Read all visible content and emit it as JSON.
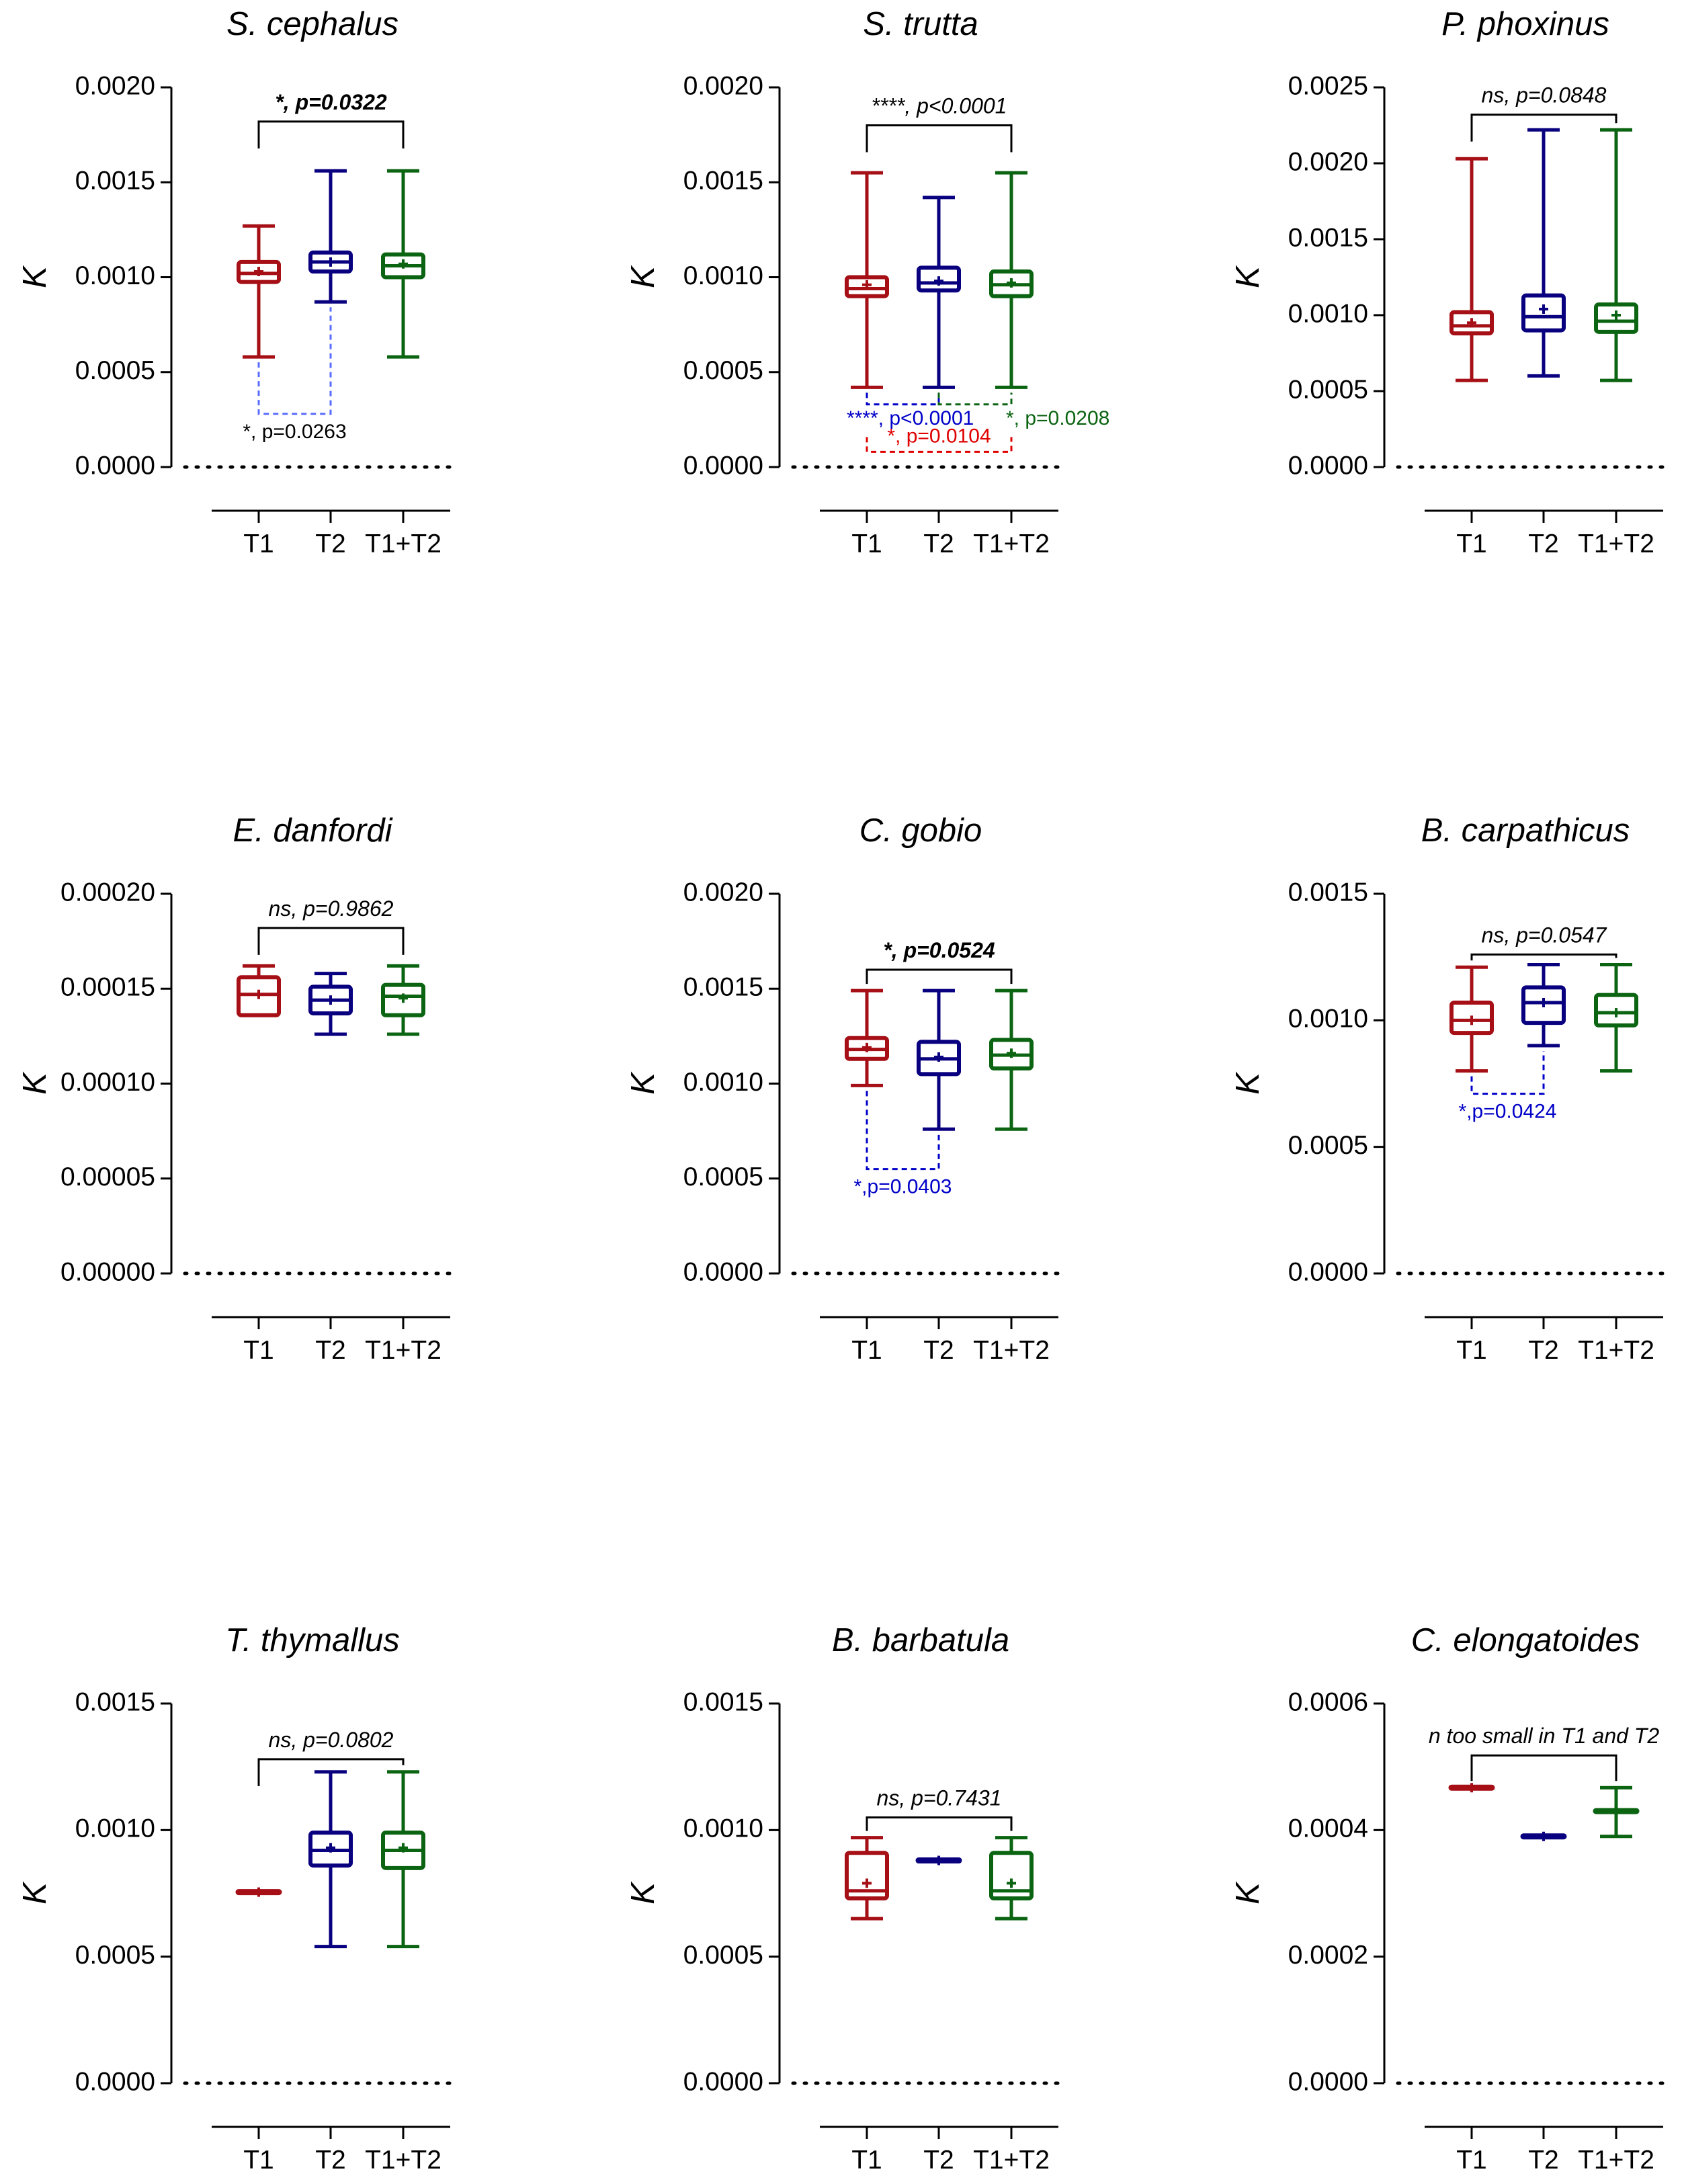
{
  "figure": {
    "colors": {
      "T1": "#a50f15",
      "T2": "#08007f",
      "T1+T2": "#0b6411",
      "axis": "#000000"
    }
  },
  "chart_data": [
    {
      "type": "box",
      "title": "S. cephalus",
      "ylabel": "K",
      "categories": [
        "T1",
        "T2",
        "T1+T2"
      ],
      "ylim": [
        0,
        0.002
      ],
      "yticks": [
        "0.0000",
        "0.0005",
        "0.0010",
        "0.0015",
        "0.0020"
      ],
      "tickvals": [
        0,
        0.0005,
        0.001,
        0.0015,
        0.002
      ],
      "boxes": [
        {
          "min": 0.00058,
          "q1": 0.000975,
          "median": 0.00102,
          "q3": 0.00108,
          "max": 0.00127,
          "mean": 0.00103
        },
        {
          "min": 0.00087,
          "q1": 0.00103,
          "median": 0.00108,
          "q3": 0.00113,
          "max": 0.00156,
          "mean": 0.00108
        },
        {
          "min": 0.00058,
          "q1": 0.001,
          "median": 0.00106,
          "q3": 0.00112,
          "max": 0.00156,
          "mean": 0.00107
        }
      ],
      "main_test": {
        "text": "*, p=0.0322",
        "from": 0,
        "to": 2,
        "y": 0.00182,
        "bold": true
      },
      "pair_tests": [
        {
          "text": "*, p=0.0263",
          "from": 0,
          "to": 1,
          "y": 0.00028,
          "color": "#5a6cff",
          "text_color": "#000000",
          "label_pos": "below"
        }
      ]
    },
    {
      "type": "box",
      "title": "S. trutta",
      "ylabel": "K",
      "categories": [
        "T1",
        "T2",
        "T1+T2"
      ],
      "ylim": [
        0,
        0.002
      ],
      "yticks": [
        "0.0000",
        "0.0005",
        "0.0010",
        "0.0015",
        "0.0020"
      ],
      "tickvals": [
        0,
        0.0005,
        0.001,
        0.0015,
        0.002
      ],
      "boxes": [
        {
          "min": 0.00042,
          "q1": 0.0009,
          "median": 0.00094,
          "q3": 0.001,
          "max": 0.00155,
          "mean": 0.00096
        },
        {
          "min": 0.00042,
          "q1": 0.00093,
          "median": 0.00097,
          "q3": 0.00105,
          "max": 0.00142,
          "mean": 0.00098
        },
        {
          "min": 0.00042,
          "q1": 0.0009,
          "median": 0.00096,
          "q3": 0.00103,
          "max": 0.00155,
          "mean": 0.00097
        }
      ],
      "main_test": {
        "text": "****, p<0.0001",
        "from": 0,
        "to": 2,
        "y": 0.0018,
        "bold": false
      },
      "pair_tests": [
        {
          "text": "****, p<0.0001",
          "from": 0,
          "to": 1,
          "y": 0.00033,
          "color": "#0000c8",
          "text_color": "#0000c8",
          "label_pos": "below-left",
          "small": true
        },
        {
          "text": "*, p=0.0208",
          "from": 1,
          "to": 2,
          "y": 0.00033,
          "color": "#0b6411",
          "text_color": "#0b6411",
          "label_pos": "below-right",
          "small": true
        },
        {
          "text": "*, p=0.0104",
          "from": 0,
          "to": 2,
          "y": 8e-05,
          "color": "#e00000",
          "text_color": "#e00000",
          "label_pos": "above",
          "small": true
        }
      ]
    },
    {
      "type": "box",
      "title": "P. phoxinus",
      "ylabel": "K",
      "categories": [
        "T1",
        "T2",
        "T1+T2"
      ],
      "ylim": [
        0,
        0.0025
      ],
      "yticks": [
        "0.0000",
        "0.0005",
        "0.0010",
        "0.0015",
        "0.0020",
        "0.0025"
      ],
      "tickvals": [
        0,
        0.0005,
        0.001,
        0.0015,
        0.002,
        0.0025
      ],
      "boxes": [
        {
          "min": 0.00057,
          "q1": 0.00088,
          "median": 0.00093,
          "q3": 0.00102,
          "max": 0.00203,
          "mean": 0.00095
        },
        {
          "min": 0.0006,
          "q1": 0.0009,
          "median": 0.00099,
          "q3": 0.00113,
          "max": 0.00222,
          "mean": 0.00104
        },
        {
          "min": 0.00057,
          "q1": 0.00089,
          "median": 0.00096,
          "q3": 0.00107,
          "max": 0.00222,
          "mean": 0.001
        }
      ],
      "main_test": {
        "text": "ns, p=0.0848",
        "from": 0,
        "to": 2,
        "y": 0.00232,
        "bold": false
      },
      "pair_tests": []
    },
    {
      "type": "box",
      "title": "E. danfordi",
      "ylabel": "K",
      "categories": [
        "T1",
        "T2",
        "T1+T2"
      ],
      "ylim": [
        0,
        0.0002
      ],
      "yticks": [
        "0.00000",
        "0.00005",
        "0.00010",
        "0.00015",
        "0.00020"
      ],
      "tickvals": [
        0,
        5e-05,
        0.0001,
        0.00015,
        0.0002
      ],
      "boxes": [
        {
          "min": 0.000136,
          "q1": 0.000136,
          "median": 0.000147,
          "q3": 0.000156,
          "max": 0.000162,
          "mean": 0.000147
        },
        {
          "min": 0.000126,
          "q1": 0.000137,
          "median": 0.000144,
          "q3": 0.000151,
          "max": 0.000158,
          "mean": 0.000144
        },
        {
          "min": 0.000126,
          "q1": 0.000136,
          "median": 0.000146,
          "q3": 0.000152,
          "max": 0.000162,
          "mean": 0.000145
        }
      ],
      "main_test": {
        "text": "ns, p=0.9862",
        "from": 0,
        "to": 2,
        "y": 0.000182,
        "bold": false
      },
      "pair_tests": []
    },
    {
      "type": "box",
      "title": "C. gobio",
      "ylabel": "K",
      "categories": [
        "T1",
        "T2",
        "T1+T2"
      ],
      "ylim": [
        0,
        0.002
      ],
      "yticks": [
        "0.0000",
        "0.0005",
        "0.0010",
        "0.0015",
        "0.0020"
      ],
      "tickvals": [
        0,
        0.0005,
        0.001,
        0.0015,
        0.002
      ],
      "boxes": [
        {
          "min": 0.00099,
          "q1": 0.00113,
          "median": 0.00118,
          "q3": 0.00124,
          "max": 0.00149,
          "mean": 0.00119
        },
        {
          "min": 0.00076,
          "q1": 0.00105,
          "median": 0.00113,
          "q3": 0.00122,
          "max": 0.00149,
          "mean": 0.00114
        },
        {
          "min": 0.00076,
          "q1": 0.00108,
          "median": 0.00115,
          "q3": 0.00123,
          "max": 0.00149,
          "mean": 0.00116
        }
      ],
      "main_test": {
        "text": "*, p=0.0524",
        "from": 0,
        "to": 2,
        "y": 0.0016,
        "bold": true
      },
      "pair_tests": [
        {
          "text": "*,p=0.0403",
          "from": 0,
          "to": 1,
          "y": 0.00055,
          "color": "#0000c8",
          "text_color": "#0000c8",
          "label_pos": "below"
        }
      ]
    },
    {
      "type": "box",
      "title": "B. carpathicus",
      "ylabel": "K",
      "categories": [
        "T1",
        "T2",
        "T1+T2"
      ],
      "ylim": [
        0,
        0.0015
      ],
      "yticks": [
        "0.0000",
        "0.0005",
        "0.0010",
        "0.0015"
      ],
      "tickvals": [
        0,
        0.0005,
        0.001,
        0.0015
      ],
      "boxes": [
        {
          "min": 0.0008,
          "q1": 0.00095,
          "median": 0.001,
          "q3": 0.00107,
          "max": 0.00121,
          "mean": 0.001
        },
        {
          "min": 0.0009,
          "q1": 0.00099,
          "median": 0.00107,
          "q3": 0.00113,
          "max": 0.00122,
          "mean": 0.00107
        },
        {
          "min": 0.0008,
          "q1": 0.00098,
          "median": 0.00103,
          "q3": 0.0011,
          "max": 0.00122,
          "mean": 0.00103
        }
      ],
      "main_test": {
        "text": "ns, p=0.0547",
        "from": 0,
        "to": 2,
        "y": 0.00126,
        "bold": false
      },
      "pair_tests": [
        {
          "text": "*,p=0.0424",
          "from": 0,
          "to": 1,
          "y": 0.00071,
          "color": "#0000c8",
          "text_color": "#0000c8",
          "label_pos": "below"
        }
      ]
    },
    {
      "type": "box",
      "title": "T. thymallus",
      "ylabel": "K",
      "categories": [
        "T1",
        "T2",
        "T1+T2"
      ],
      "ylim": [
        0,
        0.0015
      ],
      "yticks": [
        "0.0000",
        "0.0005",
        "0.0010",
        "0.0015"
      ],
      "tickvals": [
        0,
        0.0005,
        0.001,
        0.0015
      ],
      "boxes": [
        {
          "min": 0.000755,
          "q1": 0.000755,
          "median": 0.000755,
          "q3": 0.000755,
          "max": 0.000755,
          "mean": 0.000755
        },
        {
          "min": 0.00054,
          "q1": 0.00086,
          "median": 0.00092,
          "q3": 0.00099,
          "max": 0.00123,
          "mean": 0.00093
        },
        {
          "min": 0.00054,
          "q1": 0.00085,
          "median": 0.00092,
          "q3": 0.00099,
          "max": 0.00123,
          "mean": 0.00093
        }
      ],
      "main_test": {
        "text": "ns, p=0.0802",
        "from": 0,
        "to": 2,
        "y": 0.00128,
        "bold": false
      },
      "pair_tests": []
    },
    {
      "type": "box",
      "title": "B. barbatula",
      "ylabel": "K",
      "categories": [
        "T1",
        "T2",
        "T1+T2"
      ],
      "ylim": [
        0,
        0.0015
      ],
      "yticks": [
        "0.0000",
        "0.0005",
        "0.0010",
        "0.0015"
      ],
      "tickvals": [
        0,
        0.0005,
        0.001,
        0.0015
      ],
      "boxes": [
        {
          "min": 0.00065,
          "q1": 0.00073,
          "median": 0.00076,
          "q3": 0.00091,
          "max": 0.00097,
          "mean": 0.00079
        },
        {
          "min": 0.00088,
          "q1": 0.00088,
          "median": 0.00088,
          "q3": 0.00088,
          "max": 0.00088,
          "mean": 0.00088
        },
        {
          "min": 0.00065,
          "q1": 0.00073,
          "median": 0.00076,
          "q3": 0.00091,
          "max": 0.00097,
          "mean": 0.00079
        }
      ],
      "main_test": {
        "text": "ns, p=0.7431",
        "from": 0,
        "to": 2,
        "y": 0.00105,
        "bold": false
      },
      "pair_tests": []
    },
    {
      "type": "box",
      "title": "C. elongatoides",
      "ylabel": "K",
      "categories": [
        "T1",
        "T2",
        "T1+T2"
      ],
      "ylim": [
        0,
        0.0006
      ],
      "yticks": [
        "0.0000",
        "0.0002",
        "0.0004",
        "0.0006"
      ],
      "tickvals": [
        0,
        0.0002,
        0.0004,
        0.0006
      ],
      "boxes": [
        {
          "min": 0.000467,
          "q1": 0.000467,
          "median": 0.000467,
          "q3": 0.000467,
          "max": 0.000467,
          "mean": 0.000467
        },
        {
          "min": 0.00039,
          "q1": 0.00039,
          "median": 0.00039,
          "q3": 0.00039,
          "max": 0.00039,
          "mean": 0.00039
        },
        {
          "min": 0.00039,
          "q1": 0.00043,
          "median": 0.00043,
          "q3": 0.00043,
          "max": 0.000467,
          "mean": 0.00043
        }
      ],
      "main_test": {
        "text": "n too small in T1 and T2",
        "from": 0,
        "to": 2,
        "y": 0.000518,
        "bold": false
      },
      "pair_tests": []
    }
  ]
}
